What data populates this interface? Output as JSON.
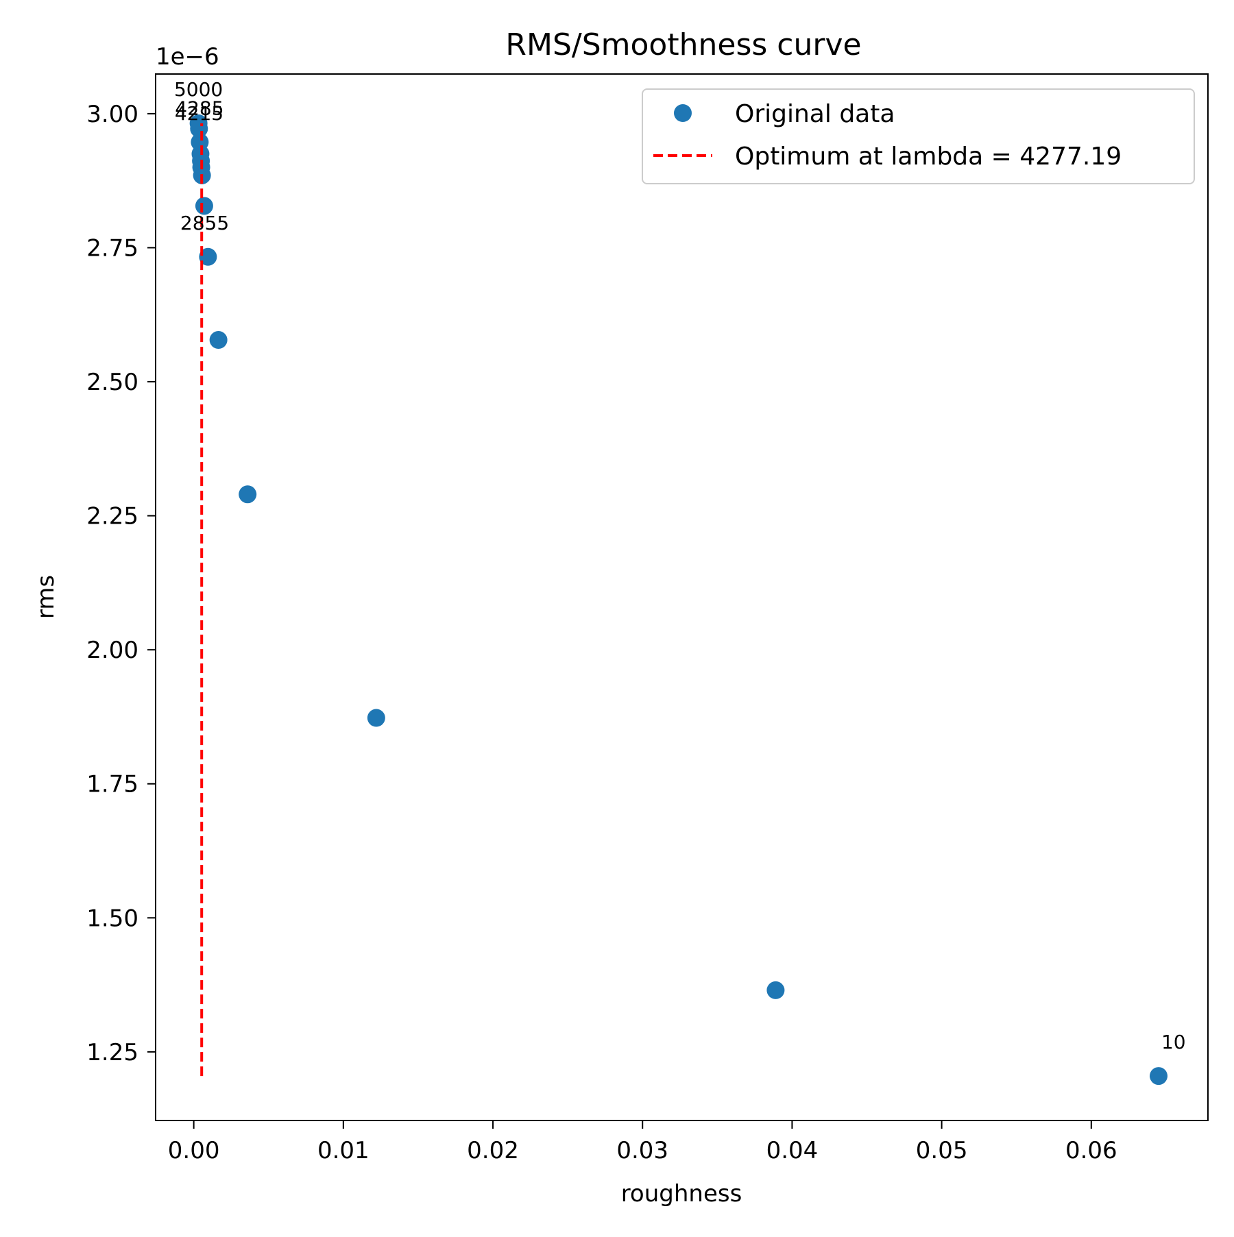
{
  "chart_data": {
    "type": "scatter",
    "title": "RMS/Smoothness curve",
    "xlabel": "roughness",
    "ylabel": "rms",
    "y_offset_label": "1e−6",
    "xlim": [
      -0.00255,
      0.0678
    ],
    "ylim": [
      1.122e-06,
      3.074e-06
    ],
    "x_ticks": [
      0.0,
      0.01,
      0.02,
      0.03,
      0.04,
      0.05,
      0.06
    ],
    "x_tick_labels": [
      "0.00",
      "0.01",
      "0.02",
      "0.03",
      "0.04",
      "0.05",
      "0.06"
    ],
    "y_ticks": [
      1.25e-06,
      1.5e-06,
      1.75e-06,
      2e-06,
      2.25e-06,
      2.5e-06,
      2.75e-06,
      3e-06
    ],
    "y_tick_labels": [
      "1.25",
      "1.50",
      "1.75",
      "2.00",
      "2.25",
      "2.50",
      "2.75",
      "3.00"
    ],
    "grid": false,
    "legend_position": "top-right",
    "series": [
      {
        "name": "Original data",
        "color": "#1f77b4",
        "marker": "circle",
        "points": [
          {
            "x": 0.0645,
            "y": 1.205e-06
          },
          {
            "x": 0.0389,
            "y": 1.365e-06
          },
          {
            "x": 0.0122,
            "y": 1.873e-06
          },
          {
            "x": 0.0036,
            "y": 2.29e-06
          },
          {
            "x": 0.00165,
            "y": 2.578e-06
          },
          {
            "x": 0.00095,
            "y": 2.733e-06
          },
          {
            "x": 0.0007,
            "y": 2.828e-06
          },
          {
            "x": 0.00055,
            "y": 2.885e-06
          },
          {
            "x": 0.0005,
            "y": 2.9e-06
          },
          {
            "x": 0.00048,
            "y": 2.912e-06
          },
          {
            "x": 0.00045,
            "y": 2.925e-06
          },
          {
            "x": 0.0004,
            "y": 2.947e-06
          },
          {
            "x": 0.00035,
            "y": 2.972e-06
          },
          {
            "x": 0.00032,
            "y": 2.982e-06
          }
        ]
      }
    ],
    "optimum_line": {
      "name": "Optimum at lambda = 4277.19",
      "color": "#ff0000",
      "style": "dashed",
      "x": 0.00053,
      "y_range": [
        1.205e-06,
        2.982e-06
      ]
    },
    "annotations": [
      {
        "text": "5000",
        "x": 0.00032,
        "y": 2.982e-06
      },
      {
        "text": "4285",
        "x": 0.00038,
        "y": 2.947e-06
      },
      {
        "text": "4215",
        "x": 0.00036,
        "y": 2.937e-06
      },
      {
        "text": "2855",
        "x": 0.00073,
        "y": 2.733e-06
      },
      {
        "text": "10",
        "x": 0.0655,
        "y": 1.205e-06
      }
    ]
  }
}
